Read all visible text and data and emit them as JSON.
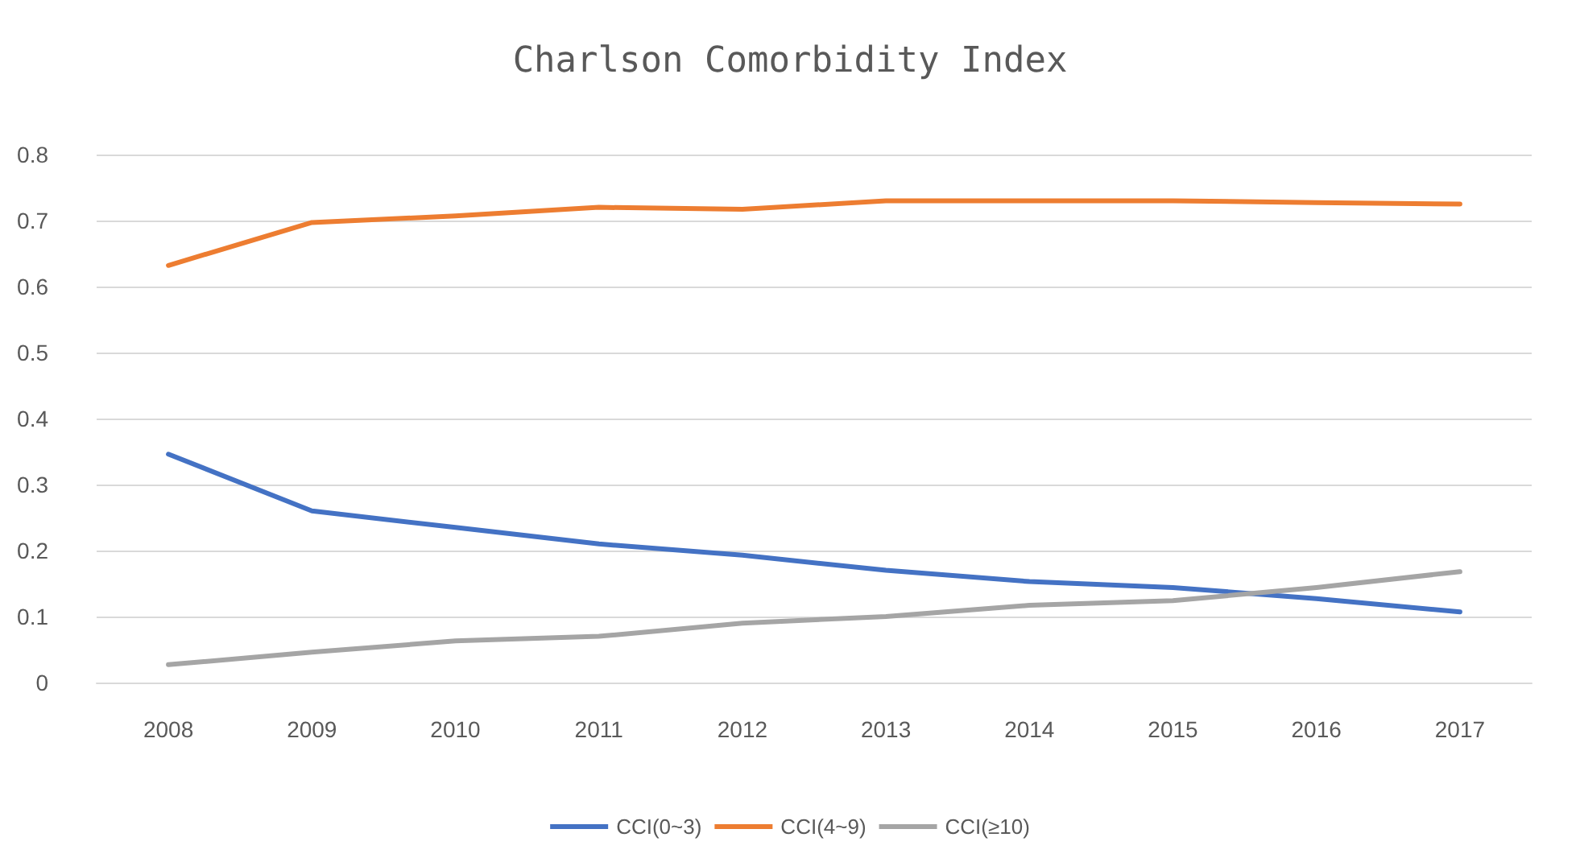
{
  "chart_data": {
    "type": "line",
    "title": "Charlson Comorbidity Index",
    "categories": [
      "2008",
      "2009",
      "2010",
      "2011",
      "2012",
      "2013",
      "2014",
      "2015",
      "2016",
      "2017"
    ],
    "series": [
      {
        "name": "CCI(0~3)",
        "color": "#4472c4",
        "values": [
          0.346,
          0.26,
          0.235,
          0.21,
          0.193,
          0.17,
          0.153,
          0.144,
          0.127,
          0.107
        ]
      },
      {
        "name": "CCI(4~9)",
        "color": "#ed7d31",
        "values": [
          0.632,
          0.697,
          0.707,
          0.72,
          0.717,
          0.73,
          0.73,
          0.73,
          0.727,
          0.725
        ]
      },
      {
        "name": "CCI(≥10)",
        "color": "#a5a5a5",
        "values": [
          0.027,
          0.046,
          0.063,
          0.07,
          0.09,
          0.1,
          0.117,
          0.124,
          0.144,
          0.168
        ]
      }
    ],
    "ylim": [
      0,
      0.8
    ],
    "yticks": [
      0,
      0.1,
      0.2,
      0.3,
      0.4,
      0.5,
      0.6,
      0.7,
      0.8
    ],
    "grid": "y",
    "legend": "bottom",
    "marker": "none",
    "line_style": "solid"
  }
}
